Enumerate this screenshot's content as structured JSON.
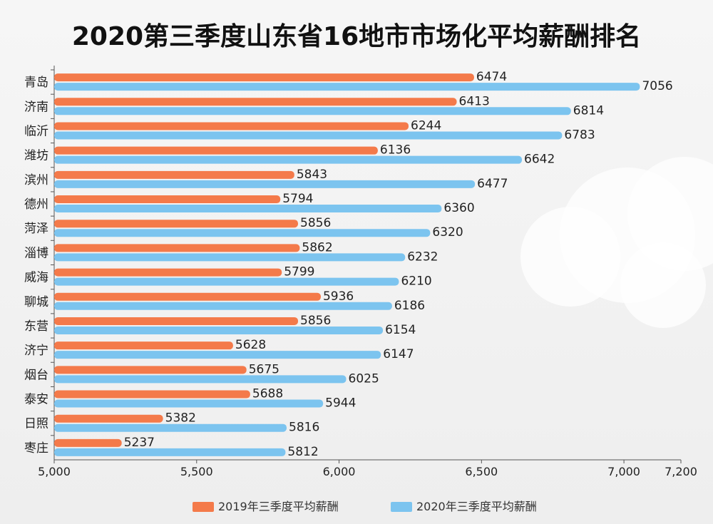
{
  "chart_data": {
    "type": "bar",
    "orientation": "horizontal",
    "title": "2020第三季度山东省16地市市场化平均薪酬排名",
    "categories": [
      "青岛",
      "济南",
      "临沂",
      "潍坊",
      "滨州",
      "德州",
      "菏泽",
      "淄博",
      "威海",
      "聊城",
      "东营",
      "济宁",
      "烟台",
      "泰安",
      "日照",
      "枣庄"
    ],
    "series": [
      {
        "name": "2019年三季度平均薪酬",
        "color": "#f47a4a",
        "values": [
          6474,
          6413,
          6244,
          6136,
          5843,
          5794,
          5856,
          5862,
          5799,
          5936,
          5856,
          5628,
          5675,
          5688,
          5382,
          5237
        ]
      },
      {
        "name": "2020年三季度平均薪酬",
        "color": "#7cc4ef",
        "values": [
          7056,
          6814,
          6783,
          6642,
          6477,
          6360,
          6320,
          6232,
          6210,
          6186,
          6154,
          6147,
          6025,
          5944,
          5816,
          5812
        ]
      }
    ],
    "xlim": [
      5000,
      7200
    ],
    "xticks": [
      5000,
      5500,
      6000,
      6500,
      7000,
      7200
    ],
    "xtick_labels": [
      "5,000",
      "5,500",
      "6,000",
      "6,500",
      "7,000",
      "7,200"
    ],
    "xlabel": "",
    "ylabel": "",
    "grid": false,
    "legend_position": "bottom"
  }
}
